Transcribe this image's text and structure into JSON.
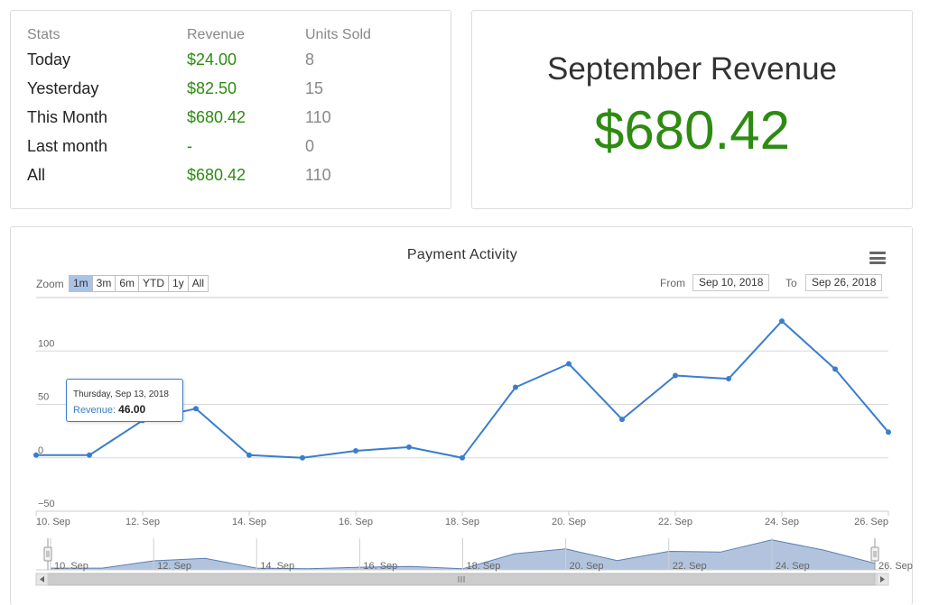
{
  "stats": {
    "headers": [
      "Stats",
      "Revenue",
      "Units Sold"
    ],
    "rows": [
      {
        "label": "Today",
        "revenue": "$24.00",
        "units": "8"
      },
      {
        "label": "Yesterday",
        "revenue": "$82.50",
        "units": "15"
      },
      {
        "label": "This Month",
        "revenue": "$680.42",
        "units": "110"
      },
      {
        "label": "Last month",
        "revenue": "-",
        "units": "0"
      },
      {
        "label": "All",
        "revenue": "$680.42",
        "units": "110"
      }
    ]
  },
  "revenue_card": {
    "title": "September Revenue",
    "value": "$680.42"
  },
  "chart": {
    "title": "Payment Activity",
    "menu_icon": "hamburger-menu-icon",
    "zoom_label": "Zoom",
    "zoom_buttons": [
      "1m",
      "3m",
      "6m",
      "YTD",
      "1y",
      "All"
    ],
    "zoom_active": "1m",
    "from_label": "From",
    "from_value": "Sep 10, 2018",
    "to_label": "To",
    "to_value": "Sep 26, 2018",
    "tooltip": {
      "date": "Thursday, Sep 13, 2018",
      "series": "Revenue",
      "value": "46.00"
    },
    "colors": {
      "line": "#3a7dce",
      "navigator_fill": "#b2c4dd",
      "money": "#2e8b12"
    }
  },
  "chart_data": {
    "type": "line",
    "title": "Payment Activity",
    "xlabel": "",
    "ylabel": "",
    "x": [
      "10. Sep",
      "11. Sep",
      "12. Sep",
      "13. Sep",
      "14. Sep",
      "15. Sep",
      "16. Sep",
      "17. Sep",
      "18. Sep",
      "19. Sep",
      "20. Sep",
      "21. Sep",
      "22. Sep",
      "23. Sep",
      "24. Sep",
      "25. Sep",
      "26. Sep"
    ],
    "series": [
      {
        "name": "Revenue",
        "values": [
          2.5,
          2.5,
          35,
          46,
          2.5,
          0,
          6.5,
          10,
          0,
          66,
          88,
          36,
          77,
          74,
          128,
          83,
          24
        ]
      }
    ],
    "ylim": [
      -50,
      150
    ],
    "yticks": [
      -50,
      0,
      50,
      100
    ],
    "xtick_labels": [
      "10. Sep",
      "12. Sep",
      "14. Sep",
      "16. Sep",
      "18. Sep",
      "20. Sep",
      "22. Sep",
      "24. Sep",
      "26. Sep"
    ],
    "grid": true,
    "legend": "none"
  }
}
